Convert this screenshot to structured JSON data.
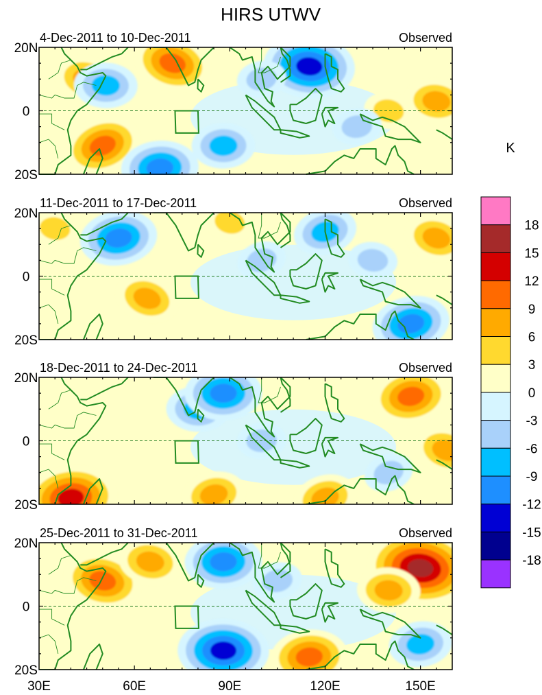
{
  "chart_data": {
    "type": "heatmap",
    "title": "HIRS UTWV",
    "colorbar": {
      "unit": "K",
      "levels": [
        18,
        15,
        12,
        9,
        6,
        3,
        0,
        -3,
        -6,
        -9,
        -12,
        -15,
        -18
      ],
      "level_labels": [
        "18",
        "15",
        "12",
        "9",
        "6",
        "3",
        "0",
        "-3",
        "-6",
        "-9",
        "-12",
        "-15",
        "-18"
      ],
      "colors": [
        "#ff79c4",
        "#a52a2a",
        "#d40000",
        "#ff6a00",
        "#ffaa00",
        "#ffd92f",
        "#ffffc8",
        "#d6f5ff",
        "#a9d1fa",
        "#00bfff",
        "#1e8fff",
        "#0000d4",
        "#00008f",
        "#9a32ff"
      ]
    },
    "x_axis": {
      "range": [
        30,
        160
      ],
      "ticks": [
        30,
        60,
        90,
        120,
        150
      ],
      "tick_labels": [
        "30E",
        "60E",
        "90E",
        "120E",
        "150E"
      ]
    },
    "y_axis": {
      "range": [
        -20,
        20
      ],
      "ticks": [
        20,
        0,
        -20
      ],
      "tick_labels": [
        "20N",
        "0",
        "20S"
      ]
    },
    "box_region": {
      "lon": [
        73,
        80
      ],
      "lat": [
        -7,
        0
      ]
    },
    "panels": [
      {
        "left_label": "4-Dec-2011 to 10-Dec-2011",
        "right_label": "Observed",
        "features": [
          {
            "lon": 50,
            "lat": -11,
            "value": 9
          },
          {
            "lon": 72,
            "lat": 15,
            "value": 9
          },
          {
            "lon": 45,
            "lat": 10,
            "value": 6
          },
          {
            "lon": 140,
            "lat": 0,
            "value": 3
          },
          {
            "lon": 155,
            "lat": 3,
            "value": 6
          },
          {
            "lon": 115,
            "lat": 14,
            "value": -12
          },
          {
            "lon": 51,
            "lat": 8,
            "value": -6
          },
          {
            "lon": 88,
            "lat": -11,
            "value": -6
          },
          {
            "lon": 68,
            "lat": -18,
            "value": -9
          },
          {
            "lon": 130,
            "lat": -5,
            "value": -3
          },
          {
            "lon": 100,
            "lat": 10,
            "value": -3
          }
        ]
      },
      {
        "left_label": "11-Dec-2011 to 17-Dec-2011",
        "right_label": "Observed",
        "features": [
          {
            "lon": 55,
            "lat": 12,
            "value": -9
          },
          {
            "lon": 147,
            "lat": -15,
            "value": -9
          },
          {
            "lon": 120,
            "lat": 14,
            "value": -6
          },
          {
            "lon": 100,
            "lat": 5,
            "value": -3
          },
          {
            "lon": 64,
            "lat": -7,
            "value": 6
          },
          {
            "lon": 155,
            "lat": 12,
            "value": 6
          },
          {
            "lon": 90,
            "lat": 17,
            "value": 3
          },
          {
            "lon": 35,
            "lat": 15,
            "value": 3
          },
          {
            "lon": 135,
            "lat": 5,
            "value": -3
          }
        ]
      },
      {
        "left_label": "18-Dec-2011 to 24-Dec-2011",
        "right_label": "Observed",
        "features": [
          {
            "lon": 80,
            "lat": 10,
            "value": -6
          },
          {
            "lon": 88,
            "lat": 15,
            "value": -9
          },
          {
            "lon": 100,
            "lat": 0,
            "value": -3
          },
          {
            "lon": 40,
            "lat": -18,
            "value": 12
          },
          {
            "lon": 147,
            "lat": 14,
            "value": 9
          },
          {
            "lon": 85,
            "lat": -17,
            "value": 6
          },
          {
            "lon": 120,
            "lat": -18,
            "value": 6
          },
          {
            "lon": 140,
            "lat": -10,
            "value": -3
          },
          {
            "lon": 158,
            "lat": -3,
            "value": 6
          },
          {
            "lon": 50,
            "lat": 5,
            "value": 0
          }
        ]
      },
      {
        "left_label": "25-Dec-2011 to 31-Dec-2011",
        "right_label": "Observed",
        "features": [
          {
            "lon": 50,
            "lat": 8,
            "value": 9
          },
          {
            "lon": 65,
            "lat": 14,
            "value": 6
          },
          {
            "lon": 150,
            "lat": 12,
            "value": 15
          },
          {
            "lon": 140,
            "lat": 5,
            "value": 6
          },
          {
            "lon": 88,
            "lat": -14,
            "value": -12
          },
          {
            "lon": 88,
            "lat": 14,
            "value": -9
          },
          {
            "lon": 115,
            "lat": -16,
            "value": 9
          },
          {
            "lon": 150,
            "lat": -12,
            "value": -6
          },
          {
            "lon": 105,
            "lat": 8,
            "value": -3
          }
        ]
      }
    ]
  }
}
